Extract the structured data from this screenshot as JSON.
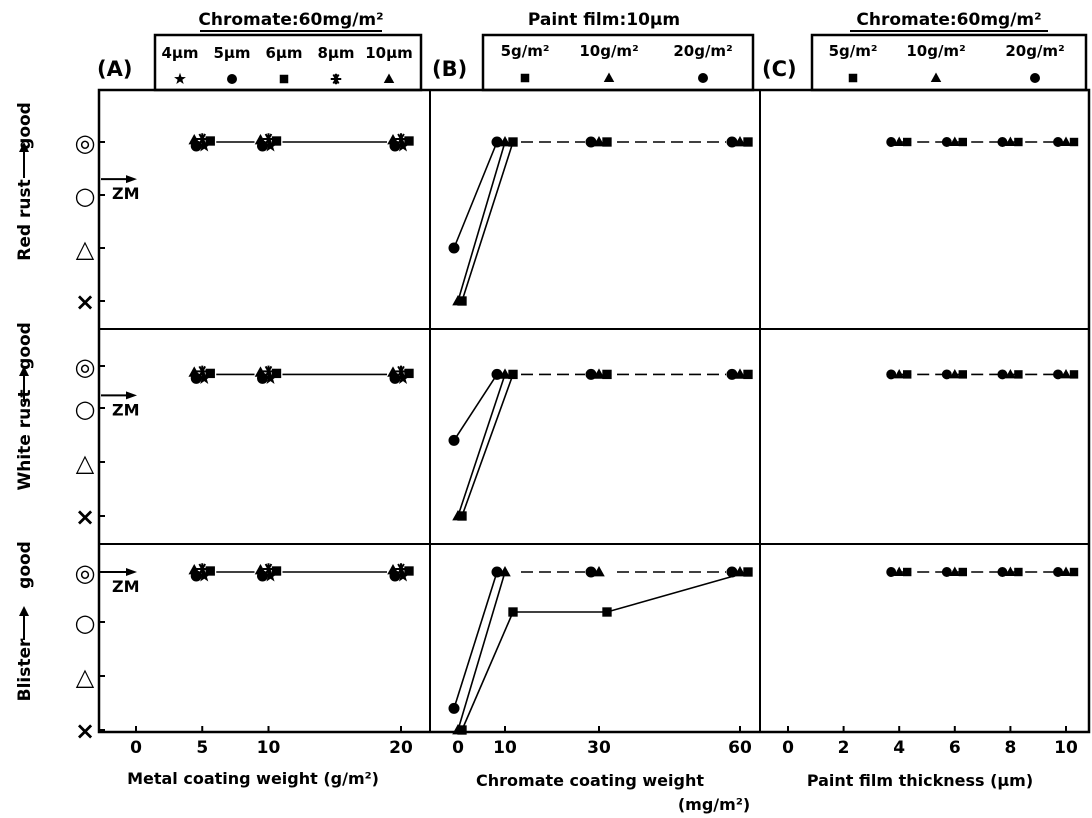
{
  "rating_scale": [
    "×",
    "△",
    "○",
    "◎"
  ],
  "row_labels": [
    "Red rust",
    "White rust",
    "Blister"
  ],
  "good_label": "good",
  "zm_label": "ZM",
  "chart_data": [
    {
      "panel": "(A)",
      "type": "line",
      "title": "Chromate:60mg/m²",
      "xlabel": "Metal coating weight (g/m²)",
      "xticks": [
        "0",
        "5",
        "10",
        "20"
      ],
      "xtick_values": [
        0,
        5,
        10,
        20
      ],
      "legend": [
        {
          "name": "4μm",
          "marker": "star"
        },
        {
          "name": "5μm",
          "marker": "circle"
        },
        {
          "name": "6μm",
          "marker": "square"
        },
        {
          "name": "8μm",
          "marker": "asterisk"
        },
        {
          "name": "10μm",
          "marker": "triangle"
        }
      ],
      "rows": [
        {
          "row": "Red rust",
          "zm_level": 2.3,
          "series": [
            {
              "name": "4μm",
              "x": [
                5,
                10,
                20
              ],
              "y": [
                3,
                3,
                3
              ]
            },
            {
              "name": "5μm",
              "x": [
                5,
                10,
                20
              ],
              "y": [
                3,
                3,
                3
              ]
            },
            {
              "name": "6μm",
              "x": [
                5,
                10,
                20
              ],
              "y": [
                3,
                3,
                3
              ]
            },
            {
              "name": "8μm",
              "x": [
                5,
                10,
                20
              ],
              "y": [
                3,
                3,
                3
              ]
            },
            {
              "name": "10μm",
              "x": [
                5,
                10,
                20
              ],
              "y": [
                3,
                3,
                3
              ]
            }
          ]
        },
        {
          "row": "White rust",
          "zm_level": 2.3,
          "series": [
            {
              "name": "4μm",
              "x": [
                5,
                10,
                20
              ],
              "y": [
                2.8,
                2.8,
                2.8
              ]
            },
            {
              "name": "5μm",
              "x": [
                5,
                10,
                20
              ],
              "y": [
                2.8,
                2.8,
                2.8
              ]
            },
            {
              "name": "6μm",
              "x": [
                5,
                10,
                20
              ],
              "y": [
                2.8,
                2.8,
                2.8
              ]
            },
            {
              "name": "8μm",
              "x": [
                5,
                10,
                20
              ],
              "y": [
                2.8,
                2.8,
                2.8
              ]
            },
            {
              "name": "10μm",
              "x": [
                5,
                10,
                20
              ],
              "y": [
                2.8,
                2.8,
                2.8
              ]
            }
          ]
        },
        {
          "row": "Blister",
          "zm_level": 3,
          "series": [
            {
              "name": "4μm",
              "x": [
                5,
                10,
                20
              ],
              "y": [
                3,
                3,
                3
              ]
            },
            {
              "name": "5μm",
              "x": [
                5,
                10,
                20
              ],
              "y": [
                3,
                3,
                3
              ]
            },
            {
              "name": "6μm",
              "x": [
                5,
                10,
                20
              ],
              "y": [
                3,
                3,
                3
              ]
            },
            {
              "name": "8μm",
              "x": [
                5,
                10,
                20
              ],
              "y": [
                3,
                3,
                3
              ]
            },
            {
              "name": "10μm",
              "x": [
                5,
                10,
                20
              ],
              "y": [
                3,
                3,
                3
              ]
            }
          ]
        }
      ]
    },
    {
      "panel": "(B)",
      "type": "line",
      "title": "Paint film:10μm",
      "xlabel": "Chromate coating weight",
      "xlabel_unit": "(mg/m²)",
      "xticks": [
        "0",
        "10",
        "30",
        "60"
      ],
      "xtick_values": [
        0,
        10,
        30,
        60
      ],
      "legend": [
        {
          "name": "5g/m²",
          "marker": "square"
        },
        {
          "name": "10g/m²",
          "marker": "triangle"
        },
        {
          "name": "20g/m²",
          "marker": "circle"
        }
      ],
      "rows": [
        {
          "row": "Red rust",
          "series": [
            {
              "name": "20g/m²",
              "x": [
                0,
                10,
                30,
                60
              ],
              "y": [
                1,
                3,
                3,
                3
              ]
            },
            {
              "name": "10g/m²",
              "x": [
                0,
                10,
                30,
                60
              ],
              "y": [
                0,
                3,
                3,
                3
              ]
            },
            {
              "name": "5g/m²",
              "x": [
                0,
                10,
                30,
                60
              ],
              "y": [
                0,
                3,
                3,
                3
              ]
            }
          ]
        },
        {
          "row": "White rust",
          "series": [
            {
              "name": "20g/m²",
              "x": [
                0,
                10,
                30,
                60
              ],
              "y": [
                1.4,
                2.8,
                2.8,
                2.8
              ]
            },
            {
              "name": "10g/m²",
              "x": [
                0,
                10,
                30,
                60
              ],
              "y": [
                0,
                2.8,
                2.8,
                2.8
              ]
            },
            {
              "name": "5g/m²",
              "x": [
                0,
                10,
                30,
                60
              ],
              "y": [
                0,
                2.8,
                2.8,
                2.8
              ]
            }
          ]
        },
        {
          "row": "Blister",
          "series": [
            {
              "name": "20g/m²",
              "x": [
                0,
                10,
                30,
                60
              ],
              "y": [
                0.4,
                3,
                3,
                3
              ]
            },
            {
              "name": "10g/m²",
              "x": [
                0,
                10,
                30,
                60
              ],
              "y": [
                0,
                3,
                3,
                3
              ]
            },
            {
              "name": "5g/m²",
              "x": [
                0,
                10,
                30,
                60
              ],
              "y": [
                0,
                2.2,
                2.2,
                3
              ]
            }
          ]
        }
      ]
    },
    {
      "panel": "(C)",
      "type": "line",
      "title": "Chromate:60mg/m²",
      "xlabel": "Paint film thickness (μm)",
      "xticks": [
        "0",
        "2",
        "4",
        "6",
        "8",
        "10"
      ],
      "xtick_values": [
        0,
        2,
        4,
        6,
        8,
        10
      ],
      "legend": [
        {
          "name": "5g/m²",
          "marker": "square"
        },
        {
          "name": "10g/m²",
          "marker": "triangle"
        },
        {
          "name": "20g/m²",
          "marker": "circle"
        }
      ],
      "rows": [
        {
          "row": "Red rust",
          "series": [
            {
              "name": "20g/m²",
              "x": [
                4,
                6,
                8,
                10
              ],
              "y": [
                3,
                3,
                3,
                3
              ]
            },
            {
              "name": "10g/m²",
              "x": [
                4,
                6,
                8,
                10
              ],
              "y": [
                3,
                3,
                3,
                3
              ]
            },
            {
              "name": "5g/m²",
              "x": [
                4,
                6,
                8,
                10
              ],
              "y": [
                3,
                3,
                3,
                3
              ]
            }
          ]
        },
        {
          "row": "White rust",
          "series": [
            {
              "name": "20g/m²",
              "x": [
                4,
                6,
                8,
                10
              ],
              "y": [
                2.8,
                2.8,
                2.8,
                2.8
              ]
            },
            {
              "name": "10g/m²",
              "x": [
                4,
                6,
                8,
                10
              ],
              "y": [
                2.8,
                2.8,
                2.8,
                2.8
              ]
            },
            {
              "name": "5g/m²",
              "x": [
                4,
                6,
                8,
                10
              ],
              "y": [
                2.8,
                2.8,
                2.8,
                2.8
              ]
            }
          ]
        },
        {
          "row": "Blister",
          "series": [
            {
              "name": "20g/m²",
              "x": [
                4,
                6,
                8,
                10
              ],
              "y": [
                3,
                3,
                3,
                3
              ]
            },
            {
              "name": "10g/m²",
              "x": [
                4,
                6,
                8,
                10
              ],
              "y": [
                3,
                3,
                3,
                3
              ]
            },
            {
              "name": "5g/m²",
              "x": [
                4,
                6,
                8,
                10
              ],
              "y": [
                3,
                3,
                3,
                3
              ]
            }
          ]
        }
      ]
    }
  ]
}
